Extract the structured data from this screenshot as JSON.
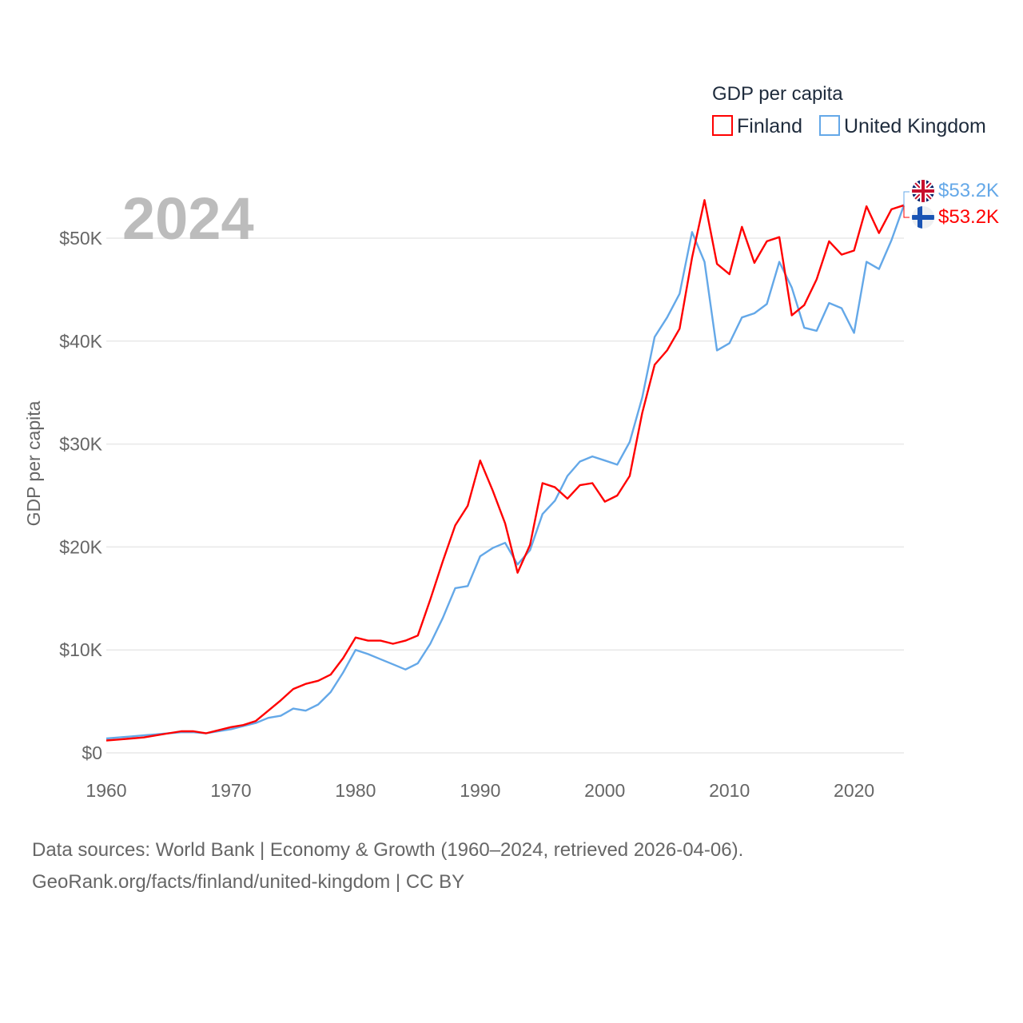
{
  "chart_data": {
    "type": "line",
    "title": "GDP per capita",
    "ylabel": "GDP per capita",
    "xlabel": "",
    "current_year_label": "2024",
    "xlim": [
      1960,
      2024
    ],
    "ylim": [
      0,
      55000
    ],
    "x_ticks": [
      1960,
      1970,
      1980,
      1990,
      2000,
      2010,
      2020
    ],
    "x_tick_labels": [
      "1960",
      "1970",
      "1980",
      "1990",
      "2000",
      "2010",
      "2020"
    ],
    "y_ticks": [
      0,
      10000,
      20000,
      30000,
      40000,
      50000
    ],
    "y_tick_labels": [
      "$0",
      "$10K",
      "$20K",
      "$30K",
      "$40K",
      "$50K"
    ],
    "grid": true,
    "legend_placement": "top-right",
    "x": [
      1960,
      1961,
      1962,
      1963,
      1964,
      1965,
      1966,
      1967,
      1968,
      1969,
      1970,
      1971,
      1972,
      1973,
      1974,
      1975,
      1976,
      1977,
      1978,
      1979,
      1980,
      1981,
      1982,
      1983,
      1984,
      1985,
      1986,
      1987,
      1988,
      1989,
      1990,
      1991,
      1992,
      1993,
      1994,
      1995,
      1996,
      1997,
      1998,
      1999,
      2000,
      2001,
      2002,
      2003,
      2004,
      2005,
      2006,
      2007,
      2008,
      2009,
      2010,
      2011,
      2012,
      2013,
      2014,
      2015,
      2016,
      2017,
      2018,
      2019,
      2020,
      2021,
      2022,
      2023,
      2024
    ],
    "series": [
      {
        "name": "Finland",
        "color": "#ff0000",
        "end_label": "$53.2K",
        "flag": "finland-flag",
        "values": [
          1200,
          1300,
          1400,
          1500,
          1700,
          1900,
          2100,
          2100,
          1900,
          2200,
          2500,
          2700,
          3100,
          4100,
          5100,
          6200,
          6700,
          7000,
          7600,
          9200,
          11200,
          10900,
          10900,
          10600,
          10900,
          11400,
          14900,
          18600,
          22100,
          24000,
          28400,
          25500,
          22300,
          17500,
          20200,
          26200,
          25800,
          24700,
          26000,
          26200,
          24400,
          25000,
          26900,
          33000,
          37700,
          39100,
          41200,
          48100,
          53700,
          47500,
          46500,
          51100,
          47600,
          49700,
          50100,
          42500,
          43500,
          46000,
          49700,
          48400,
          48800,
          53100,
          50500,
          52800,
          53200
        ]
      },
      {
        "name": "United Kingdom",
        "color": "#64a8e8",
        "end_label": "$53.2K",
        "flag": "uk-flag",
        "values": [
          1400,
          1500,
          1600,
          1700,
          1800,
          1900,
          2000,
          2000,
          1900,
          2100,
          2300,
          2600,
          2900,
          3400,
          3600,
          4300,
          4100,
          4700,
          5900,
          7800,
          10000,
          9600,
          9100,
          8600,
          8100,
          8700,
          10600,
          13100,
          16000,
          16200,
          19100,
          19900,
          20400,
          18300,
          19700,
          23200,
          24500,
          26900,
          28300,
          28800,
          28400,
          28000,
          30200,
          34500,
          40400,
          42300,
          44600,
          50600,
          47700,
          39100,
          39800,
          42300,
          42700,
          43600,
          47700,
          45200,
          41300,
          41000,
          43700,
          43200,
          40800,
          47700,
          47000,
          49800,
          53200
        ]
      }
    ]
  },
  "footer": {
    "line1": "Data sources: World Bank | Economy & Growth (1960–2024, retrieved 2026-04-06).",
    "line2": "GeoRank.org/facts/finland/united-kingdom | CC BY"
  }
}
